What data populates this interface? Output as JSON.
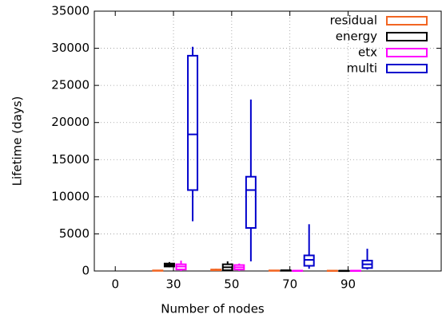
{
  "chart_data": {
    "type": "box",
    "xlabel": "Number of nodes",
    "ylabel": "Lifetime (days)",
    "xlim": [
      -0.36,
      5.6
    ],
    "xticks": [
      {
        "value": 0,
        "label": "0"
      },
      {
        "value": 1,
        "label": "30"
      },
      {
        "value": 2,
        "label": "50"
      },
      {
        "value": 3,
        "label": "70"
      },
      {
        "value": 4,
        "label": "90"
      }
    ],
    "ylim": [
      0,
      35000
    ],
    "yticks": [
      0,
      5000,
      10000,
      15000,
      20000,
      25000,
      30000,
      35000
    ],
    "grid": true,
    "legend": "top-right",
    "series": [
      {
        "name": "residual",
        "color": "#f26522",
        "values": [
          {
            "min": 0,
            "q1": 20,
            "median": 50,
            "q3": 80,
            "max": 100
          },
          {
            "min": 50,
            "q1": 100,
            "median": 150,
            "q3": 200,
            "max": 300
          },
          {
            "min": 0,
            "q1": 20,
            "median": 50,
            "q3": 80,
            "max": 100
          },
          {
            "min": 0,
            "q1": 10,
            "median": 30,
            "q3": 50,
            "max": 60
          }
        ]
      },
      {
        "name": "energy",
        "color": "#000000",
        "values": [
          {
            "min": 500,
            "q1": 600,
            "median": 800,
            "q3": 1000,
            "max": 1200
          },
          {
            "min": 0,
            "q1": 100,
            "median": 500,
            "q3": 900,
            "max": 1300
          },
          {
            "min": 0,
            "q1": 30,
            "median": 60,
            "q3": 100,
            "max": 150
          },
          {
            "min": 0,
            "q1": 10,
            "median": 20,
            "q3": 40,
            "max": 50
          }
        ]
      },
      {
        "name": "etx",
        "color": "#ff00ff",
        "values": [
          {
            "min": 0,
            "q1": 200,
            "median": 600,
            "q3": 900,
            "max": 1400
          },
          {
            "min": 0,
            "q1": 200,
            "median": 500,
            "q3": 800,
            "max": 1000
          },
          {
            "min": 0,
            "q1": 10,
            "median": 30,
            "q3": 50,
            "max": 60
          },
          {
            "min": 0,
            "q1": 10,
            "median": 30,
            "q3": 50,
            "max": 60
          }
        ]
      },
      {
        "name": "multi",
        "color": "#0000cc",
        "values": [
          {
            "min": 6700,
            "q1": 10900,
            "median": 18400,
            "q3": 29000,
            "max": 30200
          },
          {
            "min": 1300,
            "q1": 5800,
            "median": 10900,
            "q3": 12700,
            "max": 23100
          },
          {
            "min": 300,
            "q1": 700,
            "median": 1500,
            "q3": 2100,
            "max": 6300
          },
          {
            "min": 200,
            "q1": 400,
            "median": 900,
            "q3": 1400,
            "max": 3000
          }
        ]
      }
    ]
  }
}
